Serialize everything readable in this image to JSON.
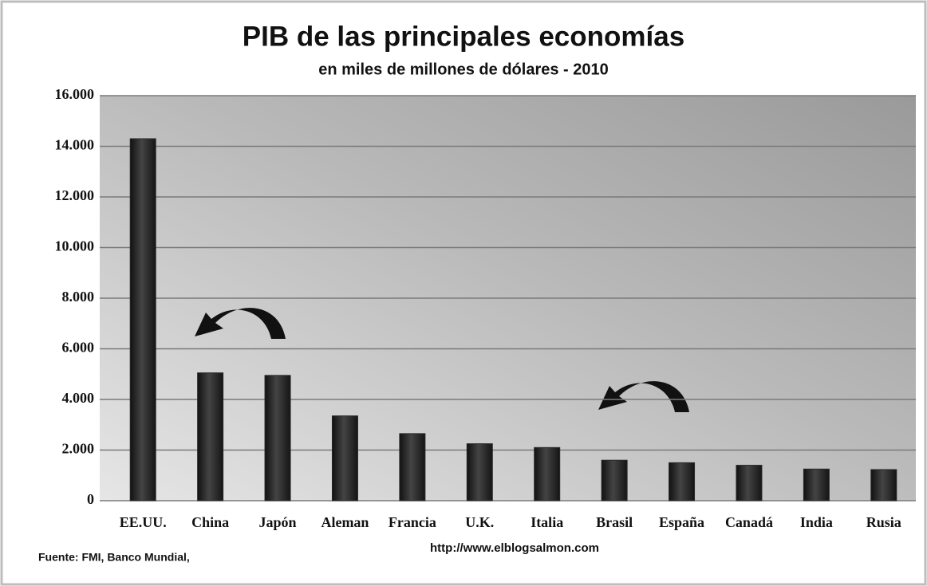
{
  "chart_data": {
    "type": "bar",
    "title": "PIB de las principales economías",
    "subtitle": "en miles de millones de dólares - 2010",
    "source": "Fuente: FMI, Banco Mundial,",
    "url": "http://www.elblogsalmon.com",
    "categories": [
      "EE.UU.",
      "China",
      "Japón",
      "Aleman",
      "Francia",
      "U.K.",
      "Italia",
      "Brasil",
      "España",
      "Canadá",
      "India",
      "Rusia"
    ],
    "values": [
      14300,
      5050,
      4950,
      3350,
      2650,
      2250,
      2100,
      1600,
      1500,
      1400,
      1250,
      1230
    ],
    "color": "#2a2a2a",
    "ylim": [
      0,
      16000
    ],
    "yticks": [
      0,
      {
        "value": 2000,
        "label": "2.000"
      },
      {
        "value": 4000,
        "label": "4.000"
      },
      {
        "value": 6000,
        "label": "6.000"
      },
      {
        "value": 8000,
        "label": "8.000"
      },
      {
        "value": 10000,
        "label": "10.000"
      },
      {
        "value": 12000,
        "label": "12.000"
      },
      {
        "value": 14000,
        "label": "14.000"
      },
      {
        "value": 16000,
        "label": "16.000"
      }
    ],
    "grid": true
  }
}
